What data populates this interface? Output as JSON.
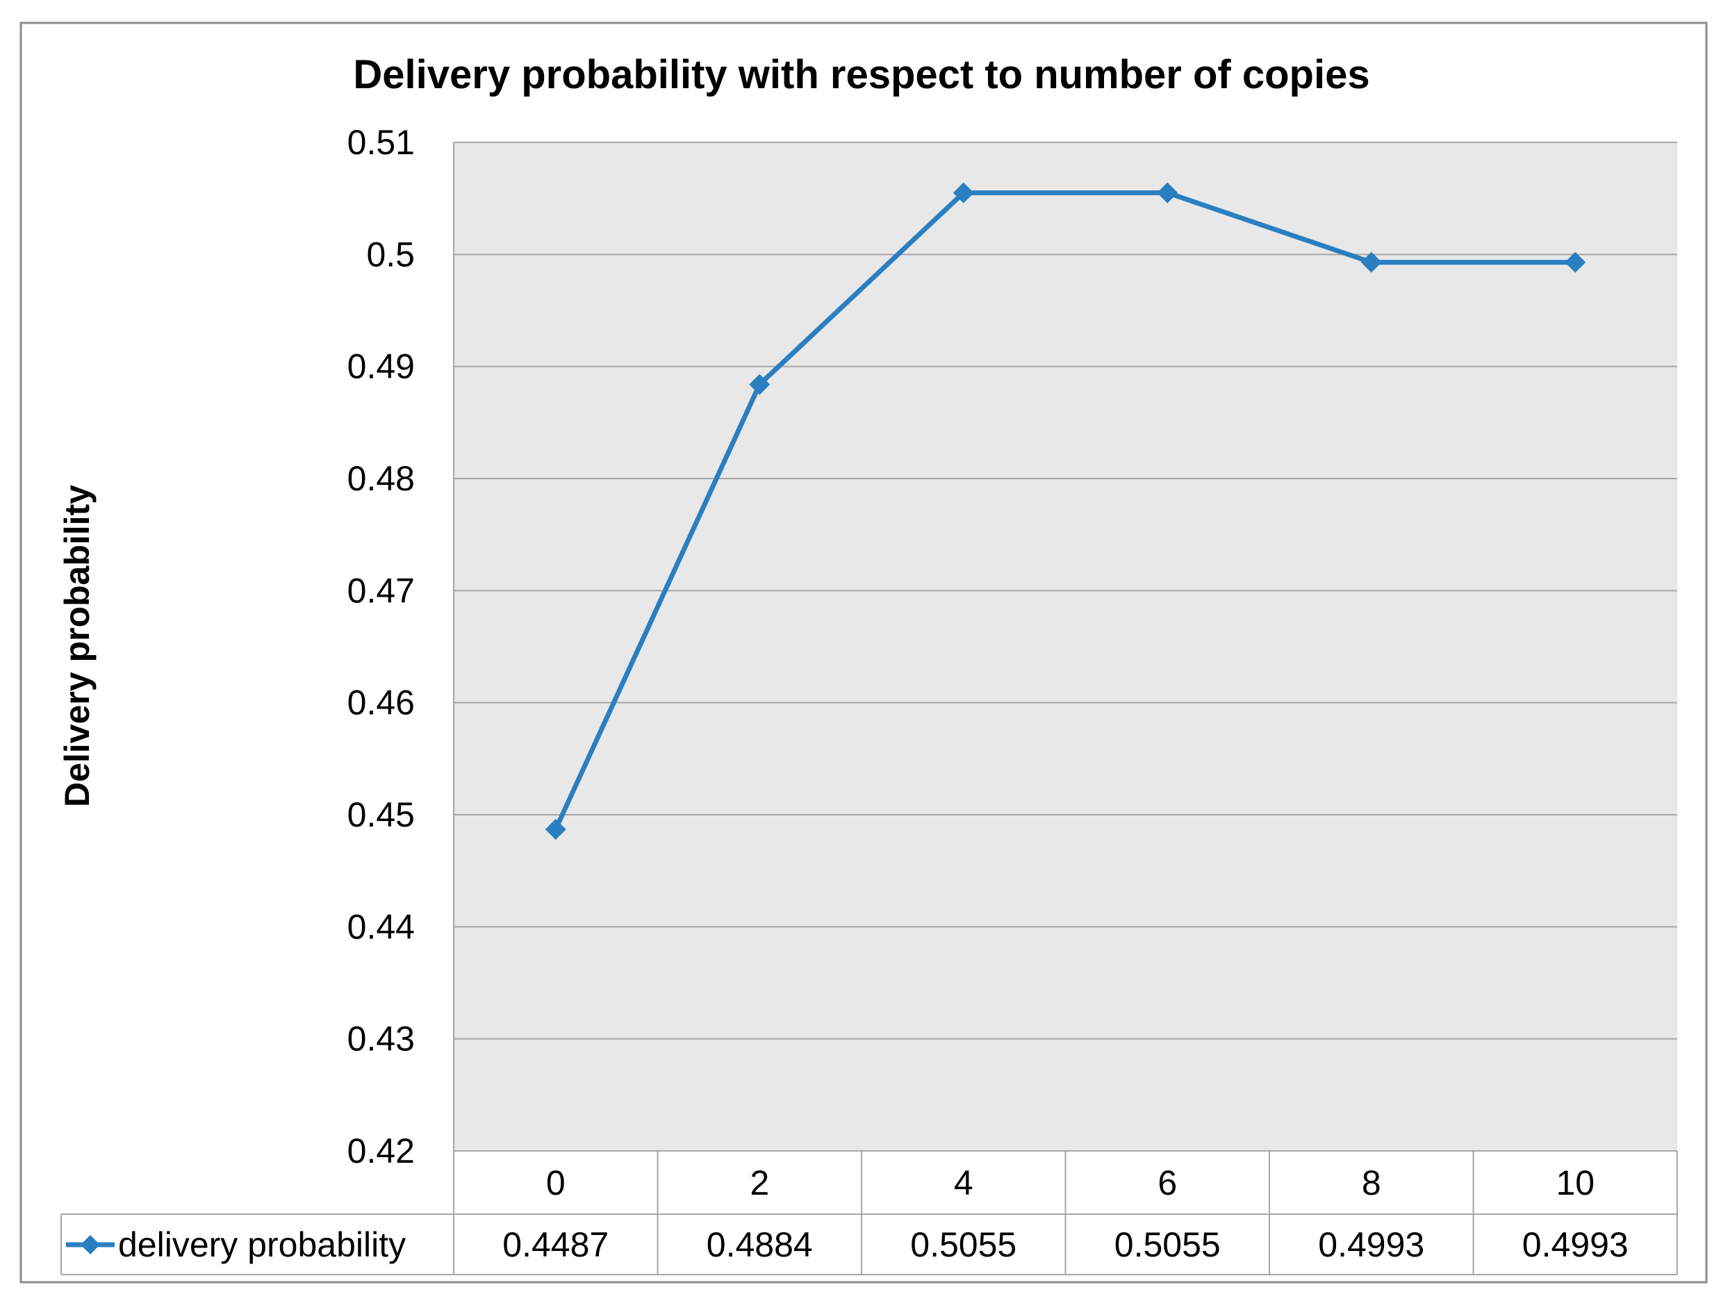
{
  "chart_data": {
    "type": "line",
    "title": "Delivery probability with respect to number of copies",
    "xlabel": "",
    "ylabel": "Delivery probability",
    "categories": [
      "0",
      "2",
      "4",
      "6",
      "8",
      "10"
    ],
    "series": [
      {
        "name": "delivery probability",
        "values": [
          0.4487,
          0.4884,
          0.5055,
          0.5055,
          0.4993,
          0.4993
        ],
        "value_labels": [
          "0.4487",
          "0.4884",
          "0.5055",
          "0.5055",
          "0.4993",
          "0.4993"
        ],
        "color": "#2a7fc1",
        "marker": "diamond"
      }
    ],
    "ylim": [
      0.42,
      0.51
    ],
    "yticks": [
      0.42,
      0.43,
      0.44,
      0.45,
      0.46,
      0.47,
      0.48,
      0.49,
      0.5,
      0.51
    ],
    "ytick_labels": [
      "0.42",
      "0.43",
      "0.44",
      "0.45",
      "0.46",
      "0.47",
      "0.48",
      "0.49",
      "0.5",
      "0.51"
    ],
    "grid": true,
    "legend": "data-table",
    "plot_background": "#e8e8e8",
    "gridline_color": "#a6a6a6"
  }
}
